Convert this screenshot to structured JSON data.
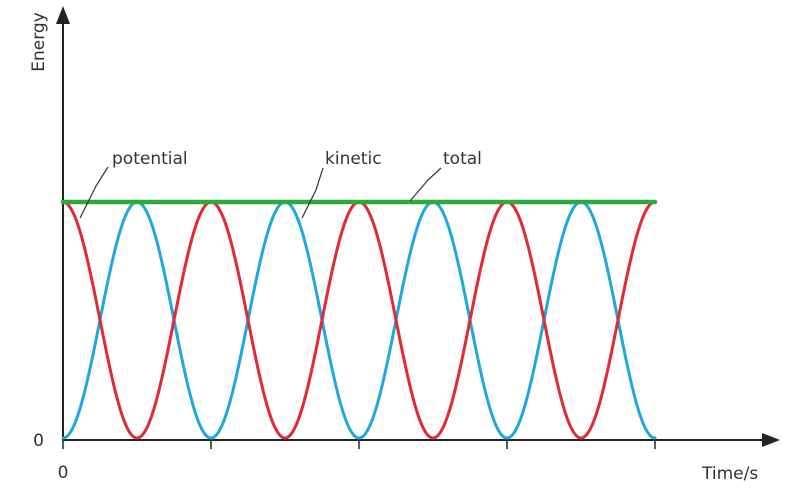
{
  "chart_data": {
    "type": "line",
    "xlabel": "Time/s",
    "ylabel": "Energy",
    "x_tick_labels": [
      "0"
    ],
    "y_tick_labels": [
      "0"
    ],
    "xlim": [
      0,
      4
    ],
    "ylim": [
      0,
      1
    ],
    "data_xmax": 4,
    "cycles": 4,
    "series": [
      {
        "name": "potential",
        "color": "#e02a35",
        "form": "cos^2(pi*cycles*t/data_xmax)",
        "start_value": 1
      },
      {
        "name": "kinetic",
        "color": "#1fa7e0",
        "form": "sin^2(pi*cycles*t/data_xmax)",
        "start_value": 0
      },
      {
        "name": "total",
        "color": "#2eaa3a",
        "form": "constant",
        "value": 1
      }
    ],
    "annotations": [
      "potential",
      "kinetic",
      "total"
    ],
    "grid": false,
    "legend": "none"
  }
}
